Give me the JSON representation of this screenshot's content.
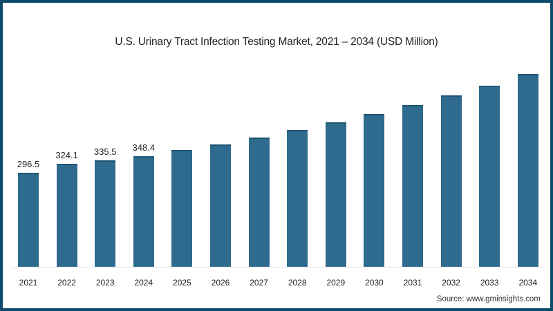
{
  "chart_data": {
    "type": "bar",
    "title": "U.S. Urinary Tract Infection Testing Market, 2021 – 2034 (USD Million)",
    "xlabel": "",
    "ylabel": "",
    "categories": [
      "2021",
      "2022",
      "2023",
      "2024",
      "2025",
      "2026",
      "2027",
      "2028",
      "2029",
      "2030",
      "2031",
      "2032",
      "2033",
      "2034"
    ],
    "values": [
      296.5,
      324.1,
      335.5,
      348.4,
      368,
      385,
      407,
      431,
      455,
      481,
      509,
      539,
      570,
      606
    ],
    "labeled_values": {
      "2021": "296.5",
      "2022": "324.1",
      "2023": "335.5",
      "2024": "348.4"
    },
    "bar_color": "#2e6b8e",
    "grid": false,
    "legend": null,
    "source": "Source: www.gminsights.com"
  },
  "labels": [
    "296.5",
    "324.1",
    "335.5",
    "348.4",
    "",
    "",
    "",
    "",
    "",
    "",
    "",
    "",
    "",
    ""
  ],
  "source_text": "Source: www.gminsights.com"
}
